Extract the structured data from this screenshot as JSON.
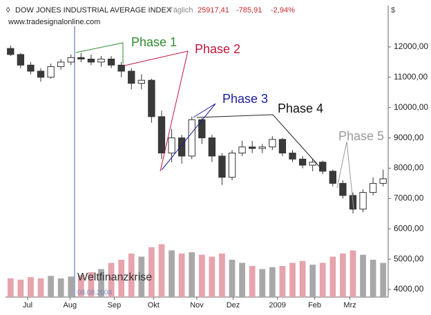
{
  "chart_data": {
    "type": "candlestick",
    "header": {
      "instrument": "DOW JONES INDUSTRIAL AVERAGE INDEX",
      "interval": "Täglich",
      "last": "25917,41",
      "change": "-785,91",
      "change_pct": "-2,94%",
      "source": "www.tradesignalonline.com"
    },
    "currency": "$",
    "annotations": [
      "Phase 1",
      "Phase 2",
      "Phase 3",
      "Phase 4",
      "Phase 5",
      "Weltfinanzkrise",
      "08.08.2008"
    ],
    "open": [
      11950,
      11750,
      11400,
      11200,
      11000,
      11350,
      11500,
      11650,
      11600,
      11500,
      11600,
      11400,
      11200,
      10800,
      10900,
      9700,
      8500,
      9000,
      8400,
      9600,
      9000,
      8400,
      7700,
      8500,
      8700,
      8650,
      8700,
      8950,
      8500,
      8300,
      8100,
      8200,
      7900,
      7500,
      7100,
      6650,
      7200,
      7500
    ],
    "high": [
      12050,
      11800,
      11500,
      11300,
      11450,
      11600,
      11750,
      11800,
      11750,
      11700,
      11700,
      11500,
      11300,
      11100,
      10950,
      9900,
      9300,
      9100,
      9700,
      9650,
      9100,
      8500,
      8600,
      8900,
      8900,
      8800,
      9050,
      9000,
      8600,
      8400,
      8300,
      8250,
      7950,
      7600,
      7200,
      7300,
      7700,
      7950
    ],
    "low": [
      11700,
      11300,
      11100,
      10850,
      10950,
      11250,
      11400,
      11500,
      11400,
      11350,
      11300,
      11000,
      10600,
      10600,
      9500,
      8300,
      8200,
      8150,
      8300,
      8800,
      8200,
      7450,
      7600,
      8400,
      8500,
      8500,
      8600,
      8400,
      8200,
      8000,
      7900,
      7800,
      7400,
      7000,
      6500,
      6550,
      7100,
      7400
    ],
    "close": [
      11750,
      11400,
      11200,
      11000,
      11350,
      11500,
      11650,
      11600,
      11500,
      11600,
      11400,
      11200,
      10800,
      10900,
      9700,
      8500,
      9000,
      8400,
      9600,
      9000,
      8400,
      7700,
      8500,
      8700,
      8650,
      8700,
      8950,
      8500,
      8300,
      8100,
      8200,
      7900,
      7500,
      7100,
      6650,
      7200,
      7500,
      7650
    ],
    "volume": [
      30,
      28,
      32,
      30,
      34,
      30,
      33,
      35,
      40,
      45,
      55,
      60,
      70,
      65,
      80,
      85,
      75,
      70,
      72,
      68,
      65,
      70,
      60,
      55,
      50,
      45,
      48,
      50,
      55,
      58,
      52,
      55,
      65,
      70,
      75,
      68,
      60,
      55
    ],
    "volume_ylim": [
      0,
      100
    ],
    "up_color": "#ffffff",
    "down_color": "#3a3a3a",
    "volume_up_color": "#a8a8a8",
    "volume_down_color": "#e6a4ad",
    "xlim": [
      -0.5,
      37.5
    ],
    "xticks": [
      {
        "value": 1.7,
        "label": "Jul"
      },
      {
        "value": 5.9,
        "label": "Aug"
      },
      {
        "value": 10.3,
        "label": "Sep"
      },
      {
        "value": 14.2,
        "label": "Okt"
      },
      {
        "value": 18.5,
        "label": "Nov"
      },
      {
        "value": 22.1,
        "label": "Dez"
      },
      {
        "value": 26.5,
        "label": "2009"
      },
      {
        "value": 30.2,
        "label": "Feb"
      },
      {
        "value": 33.7,
        "label": "Mrz"
      }
    ],
    "ylim": [
      3750,
      13320
    ],
    "yticks": [
      {
        "value": 4000,
        "label": "4000,00"
      },
      {
        "value": 5000,
        "label": "5000,00"
      },
      {
        "value": 6000,
        "label": "6000,00"
      },
      {
        "value": 7000,
        "label": "7000,00"
      },
      {
        "value": 8000,
        "label": "8000,00"
      },
      {
        "value": 9000,
        "label": "9000,00"
      },
      {
        "value": 10000,
        "label": "10000,00"
      },
      {
        "value": 11000,
        "label": "11000,00"
      },
      {
        "value": 12000,
        "label": "12000,00"
      }
    ]
  }
}
